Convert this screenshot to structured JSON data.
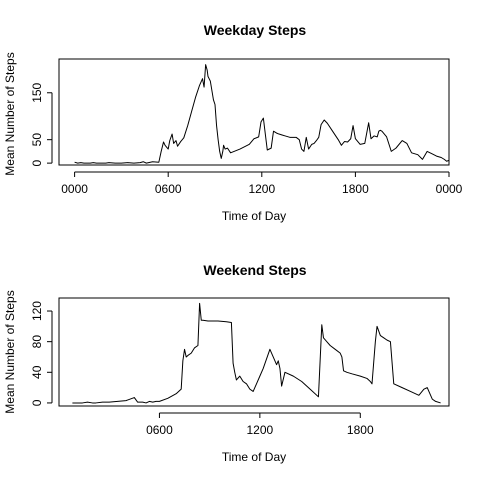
{
  "chart_data": [
    {
      "type": "line",
      "title": "Weekday Steps",
      "xlabel": "Time of Day",
      "ylabel": "Mean Number of Steps",
      "x_unit": "hours since midnight",
      "xlim": [
        -1,
        24
      ],
      "ylim": [
        -4,
        222
      ],
      "xticks": [
        {
          "value": 0,
          "label": "0000"
        },
        {
          "value": 6,
          "label": "0600"
        },
        {
          "value": 12,
          "label": "1200"
        },
        {
          "value": 18,
          "label": "1800"
        },
        {
          "value": 24,
          "label": "0000"
        }
      ],
      "yticks": [
        {
          "value": 0,
          "label": "0"
        },
        {
          "value": 50,
          "label": "50"
        },
        {
          "value": 150,
          "label": "150"
        }
      ],
      "grid": false,
      "series": [
        {
          "x": [
            0.0,
            0.2,
            0.4,
            0.6,
            1.0,
            1.2,
            1.4,
            2.0,
            2.2,
            2.6,
            3.0,
            3.4,
            3.8,
            4.2,
            4.4,
            4.6,
            5.0,
            5.4,
            5.55,
            5.7,
            5.8,
            6.0,
            6.1,
            6.25,
            6.35,
            6.5,
            6.6,
            6.8,
            7.0,
            7.25,
            7.5,
            7.75,
            8.0,
            8.2,
            8.3,
            8.4,
            8.5,
            8.55,
            8.7,
            8.9,
            9.0,
            9.1,
            9.2,
            9.3,
            9.4,
            9.5,
            9.55,
            9.65,
            9.8,
            10.0,
            10.3,
            10.6,
            10.9,
            11.2,
            11.5,
            11.8,
            11.95,
            12.1,
            12.35,
            12.6,
            12.75,
            12.95,
            13.1,
            13.3,
            13.5,
            13.8,
            14.2,
            14.4,
            14.55,
            14.7,
            14.85,
            15.0,
            15.2,
            15.35,
            15.5,
            15.65,
            15.8,
            16.0,
            16.2,
            16.5,
            16.9,
            17.1,
            17.3,
            17.5,
            17.7,
            17.85,
            18.0,
            18.3,
            18.6,
            18.85,
            19.0,
            19.2,
            19.4,
            19.5,
            19.6,
            19.7,
            20.0,
            20.3,
            20.6,
            21.0,
            21.3,
            21.6,
            22.0,
            22.3,
            22.6,
            22.9,
            23.2,
            23.5,
            23.7,
            23.85,
            24.0
          ],
          "values": [
            2,
            0,
            1,
            0,
            0,
            1,
            0,
            0,
            1,
            0,
            0,
            1,
            0,
            1,
            3,
            0,
            3,
            2,
            25,
            45,
            38,
            30,
            48,
            62,
            42,
            48,
            36,
            46,
            54,
            80,
            110,
            140,
            165,
            180,
            162,
            210,
            198,
            185,
            175,
            135,
            125,
            80,
            50,
            25,
            10,
            25,
            38,
            30,
            32,
            22,
            26,
            30,
            35,
            40,
            52,
            56,
            88,
            96,
            28,
            32,
            68,
            64,
            62,
            60,
            58,
            55,
            55,
            50,
            30,
            25,
            55,
            30,
            40,
            42,
            48,
            55,
            82,
            92,
            85,
            70,
            50,
            38,
            46,
            45,
            52,
            80,
            52,
            40,
            42,
            86,
            52,
            58,
            56,
            68,
            70,
            68,
            56,
            25,
            32,
            48,
            42,
            22,
            18,
            8,
            25,
            20,
            15,
            12,
            8,
            4,
            6
          ]
        }
      ]
    },
    {
      "type": "line",
      "title": "Weekend Steps",
      "xlabel": "Time of Day",
      "ylabel": "Mean Number of Steps",
      "x_unit": "hours since midnight",
      "xlim": [
        0,
        23.3
      ],
      "ylim": [
        -4,
        137
      ],
      "xticks": [
        {
          "value": 6,
          "label": "0600"
        },
        {
          "value": 12,
          "label": "1200"
        },
        {
          "value": 18,
          "label": "1800"
        }
      ],
      "yticks": [
        {
          "value": 0,
          "label": "0"
        },
        {
          "value": 40,
          "label": "40"
        },
        {
          "value": 80,
          "label": "80"
        },
        {
          "value": 120,
          "label": "120"
        }
      ],
      "grid": false,
      "series": [
        {
          "x": [
            0.8,
            1.4,
            1.7,
            2.0,
            2.2,
            2.6,
            3.0,
            4.0,
            4.5,
            4.7,
            5.0,
            5.2,
            5.4,
            5.6,
            5.8,
            6.0,
            6.5,
            7.0,
            7.3,
            7.4,
            7.5,
            7.6,
            7.7,
            7.9,
            8.1,
            8.3,
            8.4,
            8.5,
            8.6,
            8.9,
            9.5,
            10.0,
            10.3,
            10.4,
            10.5,
            10.6,
            10.8,
            11.0,
            11.2,
            11.4,
            11.6,
            11.8,
            12.0,
            12.2,
            12.6,
            13.0,
            13.1,
            13.2,
            13.3,
            13.5,
            14.0,
            14.5,
            15.0,
            15.5,
            15.7,
            15.8,
            16.0,
            16.2,
            16.5,
            16.8,
            16.9,
            17.0,
            17.2,
            17.5,
            18.0,
            18.4,
            18.6,
            18.7,
            18.9,
            19.0,
            19.2,
            19.4,
            19.6,
            19.8,
            20.0,
            20.5,
            21.0,
            21.5,
            21.8,
            22.0,
            22.1,
            22.3,
            22.5,
            22.8
          ],
          "values": [
            0,
            0,
            1,
            0,
            0,
            1,
            1,
            3,
            7,
            1,
            1,
            0,
            2,
            1,
            2,
            2,
            6,
            12,
            18,
            55,
            70,
            60,
            62,
            65,
            72,
            75,
            130,
            108,
            108,
            107,
            107,
            106,
            105,
            52,
            40,
            30,
            35,
            28,
            25,
            18,
            15,
            25,
            35,
            45,
            70,
            50,
            55,
            45,
            22,
            40,
            35,
            28,
            18,
            8,
            102,
            85,
            80,
            75,
            70,
            65,
            60,
            42,
            40,
            38,
            35,
            32,
            28,
            25,
            80,
            100,
            88,
            85,
            82,
            80,
            25,
            20,
            15,
            10,
            18,
            20,
            15,
            5,
            2,
            0
          ]
        }
      ]
    }
  ]
}
